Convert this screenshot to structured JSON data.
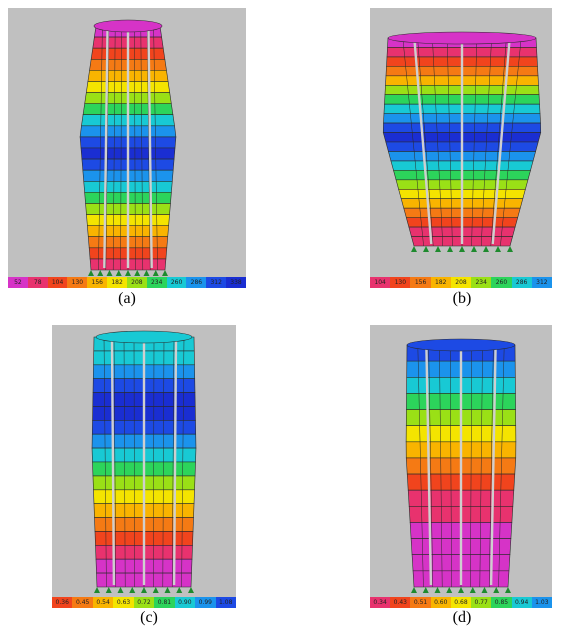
{
  "panels": [
    {
      "caption": "(a)",
      "colors": [
        "#d633c7",
        "#e8326e",
        "#f1441d",
        "#f57a14",
        "#f9b400",
        "#f4e400",
        "#9ae016",
        "#2cd45b",
        "#18c9d4",
        "#1b93ec",
        "#1d4ae4",
        "#1a2ed2",
        "#1d4ae4",
        "#1b93ec",
        "#18c9d4",
        "#2cd45b",
        "#9ae016",
        "#f4e400",
        "#f9b400",
        "#f57a14",
        "#f1441d",
        "#e8326e"
      ],
      "legend": [
        "52",
        "78",
        "104",
        "130",
        "156",
        "182",
        "208",
        "234",
        "260",
        "286",
        "312",
        "338"
      ],
      "legend_colors": [
        "#d633c7",
        "#e8326e",
        "#f1441d",
        "#f57a14",
        "#f9b400",
        "#f4e400",
        "#9ae016",
        "#2cd45b",
        "#18c9d4",
        "#1b93ec",
        "#1d4ae4",
        "#1a2ed2"
      ]
    },
    {
      "caption": "(b)",
      "colors": [
        "#d633c7",
        "#e8326e",
        "#f1441d",
        "#f57a14",
        "#f9b400",
        "#9ae016",
        "#2cd45b",
        "#18c9d4",
        "#1b93ec",
        "#1d4ae4",
        "#1a2ed2",
        "#1d4ae4",
        "#1b93ec",
        "#18c9d4",
        "#2cd45b",
        "#9ae016",
        "#f4e400",
        "#f9b400",
        "#f57a14",
        "#f1441d",
        "#e8326e",
        "#e8326e"
      ],
      "legend": [
        "104",
        "130",
        "156",
        "182",
        "208",
        "234",
        "260",
        "286",
        "312"
      ],
      "legend_colors": [
        "#e8326e",
        "#f1441d",
        "#f57a14",
        "#f9b400",
        "#f4e400",
        "#9ae016",
        "#2cd45b",
        "#18c9d4",
        "#1b93ec"
      ]
    },
    {
      "caption": "(c)",
      "colors": [
        "#18c9d4",
        "#18c9d4",
        "#1b93ec",
        "#1d4ae4",
        "#1a2ed2",
        "#1a2ed2",
        "#1d4ae4",
        "#1b93ec",
        "#18c9d4",
        "#2cd45b",
        "#9ae016",
        "#f4e400",
        "#f9b400",
        "#f57a14",
        "#f1441d",
        "#e8326e",
        "#d633c7",
        "#d633c7"
      ],
      "legend": [
        "0.36",
        "0.45",
        "0.54",
        "0.63",
        "0.72",
        "0.81",
        "0.90",
        "0.99",
        "1.08"
      ],
      "legend_colors": [
        "#f1441d",
        "#f57a14",
        "#f9b400",
        "#f4e400",
        "#9ae016",
        "#2cd45b",
        "#18c9d4",
        "#1b93ec",
        "#1d4ae4"
      ]
    },
    {
      "caption": "(d)",
      "colors": [
        "#1d4ae4",
        "#1b93ec",
        "#18c9d4",
        "#2cd45b",
        "#9ae016",
        "#f4e400",
        "#f9b400",
        "#f57a14",
        "#f1441d",
        "#e8326e",
        "#e8326e",
        "#d633c7",
        "#d633c7",
        "#d633c7",
        "#d633c7"
      ],
      "legend": [
        "0.34",
        "0.43",
        "0.51",
        "0.60",
        "0.68",
        "0.77",
        "0.85",
        "0.94",
        "1.03"
      ],
      "legend_colors": [
        "#e8326e",
        "#f1441d",
        "#f57a14",
        "#f9b400",
        "#f4e400",
        "#9ae016",
        "#2cd45b",
        "#18c9d4",
        "#1b93ec"
      ]
    }
  ]
}
